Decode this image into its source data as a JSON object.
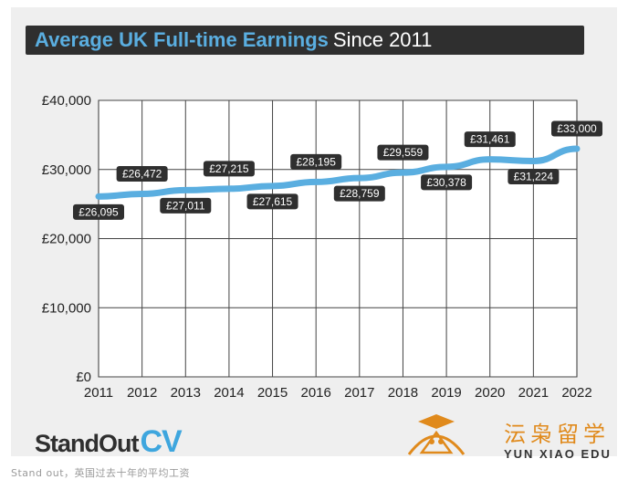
{
  "title_bold": "Average UK Full-time Earnings",
  "title_rest": "Since 2011",
  "brand": {
    "name": "StandOut",
    "suffix": "CV"
  },
  "watermark": {
    "cn": "沄枭留学",
    "en": "YUN XIAO EDU"
  },
  "caption": "Stand out，英国过去十年的平均工资",
  "colors": {
    "line": "#5aaee0",
    "label_bg": "#2f2f2f",
    "card_bg": "#efefef"
  },
  "chart_data": {
    "type": "line",
    "categories": [
      "2011",
      "2012",
      "2013",
      "2014",
      "2015",
      "2016",
      "2017",
      "2018",
      "2019",
      "2020",
      "2021",
      "2022"
    ],
    "values": [
      26095,
      26472,
      27011,
      27215,
      27615,
      28195,
      28759,
      29559,
      30378,
      31461,
      31224,
      33000
    ],
    "data_labels": [
      "£26,095",
      "£26,472",
      "£27,011",
      "£27,215",
      "£27,615",
      "£28,195",
      "£28,759",
      "£29,559",
      "£30,378",
      "£31,461",
      "£31,224",
      "£33,000"
    ],
    "label_positions": [
      "below",
      "above",
      "below",
      "above",
      "below",
      "above",
      "below",
      "above",
      "below",
      "above",
      "below",
      "above"
    ],
    "yticks": [
      0,
      10000,
      20000,
      30000,
      40000
    ],
    "ytick_labels": [
      "£0",
      "£10,000",
      "£20,000",
      "£30,000",
      "£40,000"
    ],
    "ylim": [
      0,
      40000
    ],
    "grid": true,
    "title": "Average UK Full-time Earnings Since 2011"
  }
}
